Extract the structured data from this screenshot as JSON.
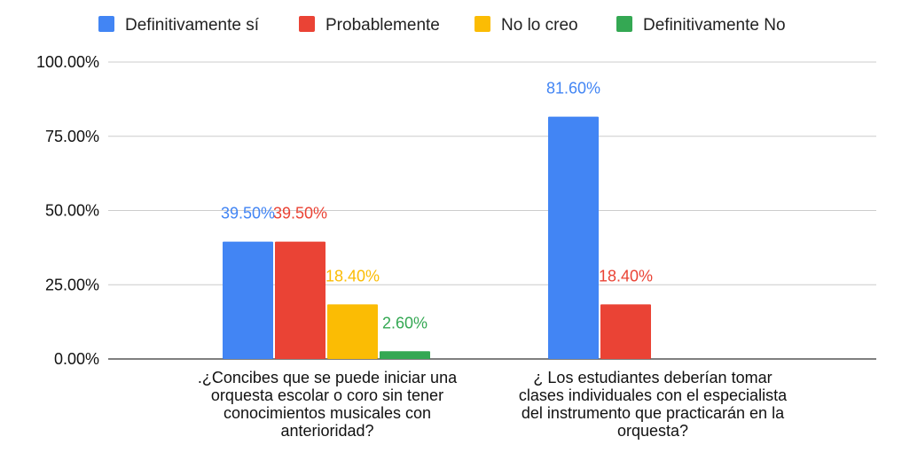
{
  "chart_data": {
    "type": "bar",
    "title": "",
    "xlabel": "",
    "ylabel": "",
    "ylim": [
      0,
      100
    ],
    "yticks": [
      "0.00%",
      "25.00%",
      "50.00%",
      "75.00%",
      "100.00%"
    ],
    "ytick_values": [
      0,
      25,
      50,
      75,
      100
    ],
    "grid": true,
    "legend_position": "top",
    "categories": [
      ".¿Concibes que se puede iniciar una orquesta escolar o coro  sin tener conocimientos  musicales con anterioridad?",
      "¿ Los estudiantes deberían tomar clases individuales con el especialista del instrumento que practicarán en la orquesta?"
    ],
    "category_lines": [
      [
        ".¿Concibes que se puede iniciar una",
        "orquesta escolar o coro  sin tener",
        "conocimientos  musicales con",
        "anterioridad?"
      ],
      [
        "¿ Los estudiantes deberían tomar",
        "clases individuales con el especialista",
        "del instrumento que practicarán en la",
        "orquesta?"
      ]
    ],
    "series": [
      {
        "name": "Definitivamente sí",
        "color": "#4285F4",
        "values": [
          39.5,
          81.6
        ],
        "labels": [
          "39.50%",
          "81.60%"
        ]
      },
      {
        "name": "Probablemente",
        "color": "#EA4335",
        "values": [
          39.5,
          18.4
        ],
        "labels": [
          "39.50%",
          "18.40%"
        ]
      },
      {
        "name": "No lo creo",
        "color": "#FBBC04",
        "values": [
          18.4,
          null
        ],
        "labels": [
          "18.40%",
          null
        ]
      },
      {
        "name": "Definitivamente No",
        "color": "#34A853",
        "values": [
          2.6,
          null
        ],
        "labels": [
          "2.60%",
          null
        ]
      }
    ]
  }
}
